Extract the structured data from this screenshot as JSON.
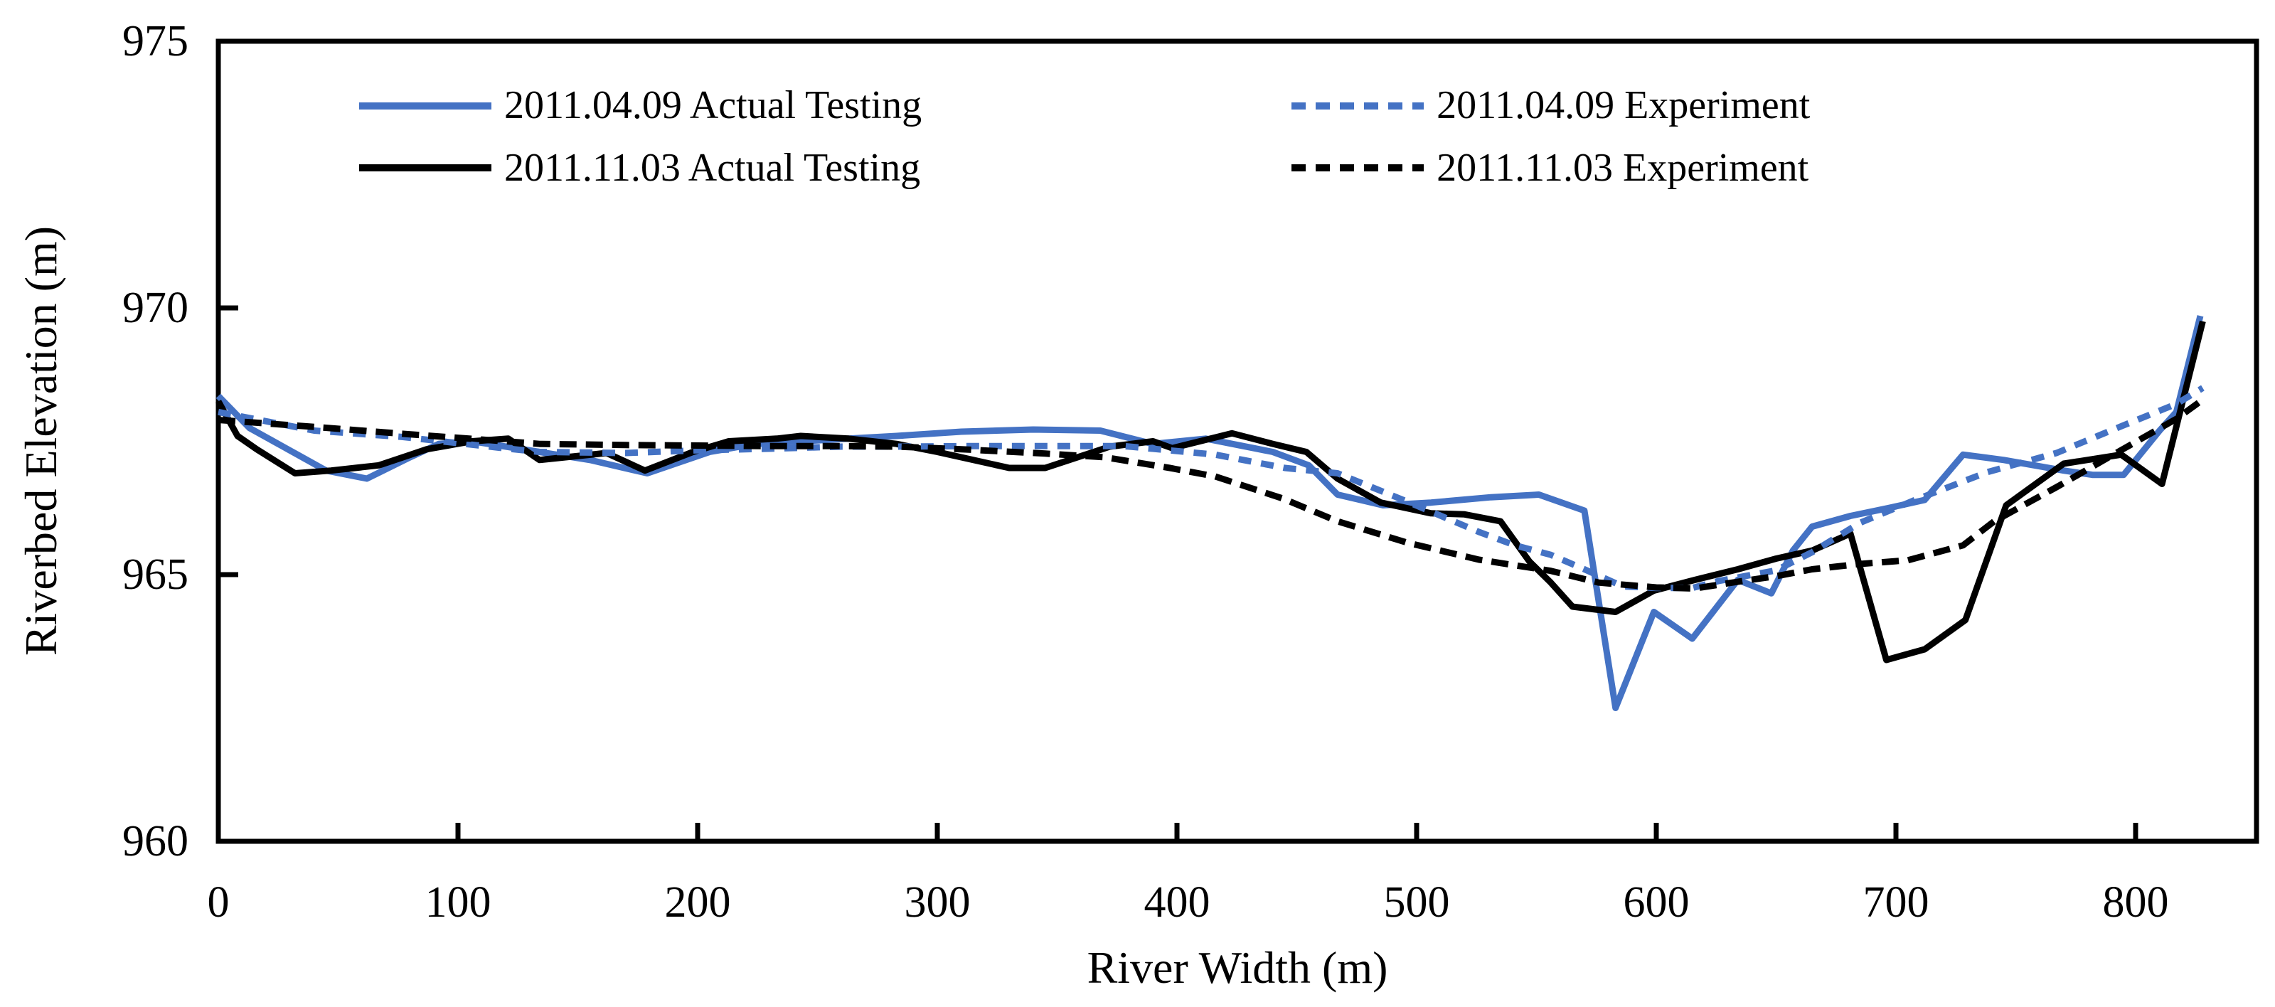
{
  "figure": {
    "background": "#ffffff"
  },
  "chart_data": {
    "type": "line",
    "title": "",
    "xlabel": "River Width (m)",
    "ylabel": "Riverbed Elevation (m)",
    "xlim": [
      0,
      850
    ],
    "ylim": [
      960,
      975
    ],
    "x_ticks": [
      0,
      100,
      200,
      300,
      400,
      500,
      600,
      700,
      800
    ],
    "y_ticks": [
      960,
      965,
      970,
      975
    ],
    "grid": false,
    "legend_position": "top-center-inside",
    "legend_order": [
      0,
      2,
      1,
      3
    ],
    "series": [
      {
        "name": "2011.04.09 Actual Testing",
        "color": "#4472C4",
        "dash": "solid",
        "points": [
          [
            0,
            968.35
          ],
          [
            13,
            967.75
          ],
          [
            27,
            967.4
          ],
          [
            45,
            966.95
          ],
          [
            62,
            966.8
          ],
          [
            80,
            967.2
          ],
          [
            92,
            967.45
          ],
          [
            106,
            967.5
          ],
          [
            120,
            967.4
          ],
          [
            134,
            967.3
          ],
          [
            155,
            967.15
          ],
          [
            179,
            966.9
          ],
          [
            205,
            967.3
          ],
          [
            224,
            967.45
          ],
          [
            243,
            967.5
          ],
          [
            263,
            967.55
          ],
          [
            283,
            967.6
          ],
          [
            310,
            967.68
          ],
          [
            340,
            967.72
          ],
          [
            368,
            967.7
          ],
          [
            390,
            967.45
          ],
          [
            412,
            967.55
          ],
          [
            440,
            967.3
          ],
          [
            455,
            967.05
          ],
          [
            467,
            966.5
          ],
          [
            486,
            966.3
          ],
          [
            506,
            966.35
          ],
          [
            531,
            966.45
          ],
          [
            551,
            966.5
          ],
          [
            570,
            966.2
          ],
          [
            583,
            962.5
          ],
          [
            599,
            964.3
          ],
          [
            615,
            963.8
          ],
          [
            634,
            964.9
          ],
          [
            648,
            964.65
          ],
          [
            657,
            965.45
          ],
          [
            665,
            965.9
          ],
          [
            681,
            966.1
          ],
          [
            697,
            966.25
          ],
          [
            712,
            966.4
          ],
          [
            728,
            967.25
          ],
          [
            745,
            967.15
          ],
          [
            770,
            966.95
          ],
          [
            782,
            966.87
          ],
          [
            795,
            966.87
          ],
          [
            810,
            967.7
          ],
          [
            817,
            968.05
          ],
          [
            827,
            969.85
          ]
        ]
      },
      {
        "name": "2011.11.03 Actual Testing",
        "color": "#000000",
        "dash": "solid",
        "points": [
          [
            0,
            968.25
          ],
          [
            8,
            967.6
          ],
          [
            16,
            967.35
          ],
          [
            32,
            966.9
          ],
          [
            47,
            966.95
          ],
          [
            67,
            967.05
          ],
          [
            87,
            967.35
          ],
          [
            106,
            967.5
          ],
          [
            121,
            967.55
          ],
          [
            134,
            967.15
          ],
          [
            162,
            967.28
          ],
          [
            178,
            966.95
          ],
          [
            198,
            967.3
          ],
          [
            213,
            967.5
          ],
          [
            233,
            967.55
          ],
          [
            243,
            967.6
          ],
          [
            263,
            967.55
          ],
          [
            283,
            967.45
          ],
          [
            300,
            967.3
          ],
          [
            330,
            967.0
          ],
          [
            345,
            967.0
          ],
          [
            372,
            967.4
          ],
          [
            390,
            967.5
          ],
          [
            398,
            967.37
          ],
          [
            423,
            967.65
          ],
          [
            440,
            967.45
          ],
          [
            454,
            967.3
          ],
          [
            467,
            966.8
          ],
          [
            485,
            966.35
          ],
          [
            506,
            966.15
          ],
          [
            520,
            966.13
          ],
          [
            535,
            966.0
          ],
          [
            547,
            965.25
          ],
          [
            556,
            964.85
          ],
          [
            565,
            964.4
          ],
          [
            583,
            964.3
          ],
          [
            599,
            964.7
          ],
          [
            616,
            964.9
          ],
          [
            634,
            965.1
          ],
          [
            650,
            965.3
          ],
          [
            665,
            965.45
          ],
          [
            681,
            965.77
          ],
          [
            696,
            963.4
          ],
          [
            712,
            963.6
          ],
          [
            729,
            964.15
          ],
          [
            746,
            966.3
          ],
          [
            770,
            967.08
          ],
          [
            794,
            967.25
          ],
          [
            811,
            966.7
          ],
          [
            828,
            969.75
          ]
        ]
      },
      {
        "name": "2011.04.09 Experiment",
        "color": "#4472C4",
        "dash": "dashed",
        "points": [
          [
            0,
            968.05
          ],
          [
            40,
            967.7
          ],
          [
            77,
            967.58
          ],
          [
            117,
            967.38
          ],
          [
            134,
            967.3
          ],
          [
            170,
            967.28
          ],
          [
            200,
            967.33
          ],
          [
            230,
            967.36
          ],
          [
            260,
            967.4
          ],
          [
            283,
            967.4
          ],
          [
            310,
            967.41
          ],
          [
            345,
            967.41
          ],
          [
            378,
            967.41
          ],
          [
            416,
            967.25
          ],
          [
            445,
            967.0
          ],
          [
            467,
            966.9
          ],
          [
            496,
            966.37
          ],
          [
            526,
            965.8
          ],
          [
            541,
            965.55
          ],
          [
            556,
            965.37
          ],
          [
            570,
            965.1
          ],
          [
            586,
            964.78
          ],
          [
            600,
            964.75
          ],
          [
            615,
            964.75
          ],
          [
            626,
            964.88
          ],
          [
            650,
            965.08
          ],
          [
            665,
            965.42
          ],
          [
            685,
            965.97
          ],
          [
            708,
            966.4
          ],
          [
            738,
            966.92
          ],
          [
            767,
            967.28
          ],
          [
            795,
            967.8
          ],
          [
            817,
            968.2
          ],
          [
            828,
            968.5
          ]
        ]
      },
      {
        "name": "2011.11.03 Experiment",
        "color": "#000000",
        "dash": "dashed",
        "points": [
          [
            0,
            967.9
          ],
          [
            40,
            967.77
          ],
          [
            77,
            967.64
          ],
          [
            117,
            967.51
          ],
          [
            134,
            967.45
          ],
          [
            170,
            967.43
          ],
          [
            200,
            967.42
          ],
          [
            230,
            967.41
          ],
          [
            260,
            967.41
          ],
          [
            283,
            967.4
          ],
          [
            310,
            967.35
          ],
          [
            345,
            967.27
          ],
          [
            370,
            967.2
          ],
          [
            397,
            967.0
          ],
          [
            416,
            966.84
          ],
          [
            444,
            966.43
          ],
          [
            467,
            966.0
          ],
          [
            496,
            965.6
          ],
          [
            526,
            965.28
          ],
          [
            556,
            965.07
          ],
          [
            576,
            964.85
          ],
          [
            600,
            964.76
          ],
          [
            616,
            964.74
          ],
          [
            636,
            964.88
          ],
          [
            650,
            964.97
          ],
          [
            665,
            965.1
          ],
          [
            685,
            965.2
          ],
          [
            705,
            965.27
          ],
          [
            728,
            965.55
          ],
          [
            741,
            966.0
          ],
          [
            767,
            966.64
          ],
          [
            795,
            967.36
          ],
          [
            817,
            967.92
          ],
          [
            828,
            968.28
          ]
        ]
      }
    ]
  }
}
